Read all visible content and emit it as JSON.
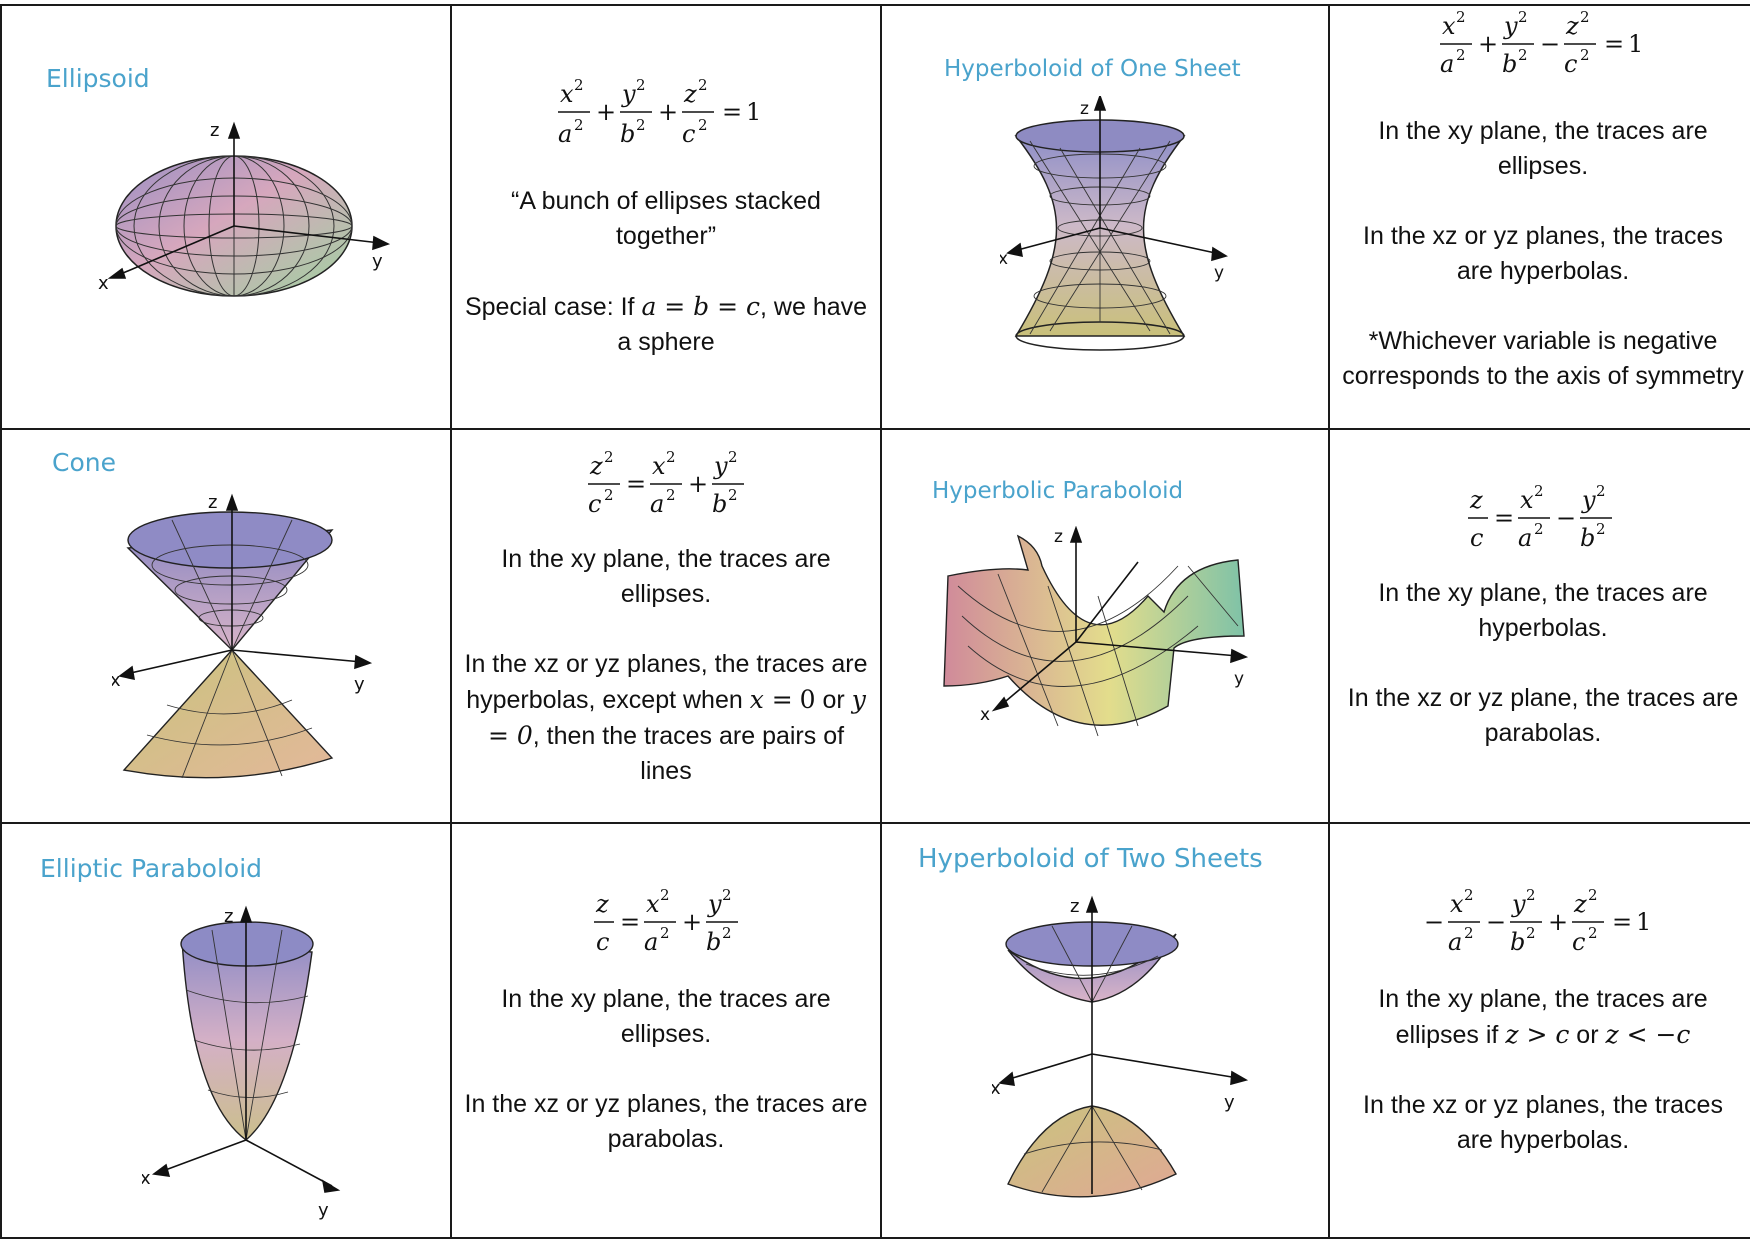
{
  "row1": {
    "ellipsoid": {
      "title": "Ellipsoid",
      "equation": "x^2/a^2 + y^2/b^2 + z^2/c^2 = 1",
      "desc1": "“A bunch of ellipses stacked together”",
      "desc2_pre": "Special case: If ",
      "desc2_math": "a = b = c",
      "desc2_post": ", we have a sphere"
    },
    "hyperboloid_one": {
      "title": "Hyperboloid of One Sheet",
      "equation": "x^2/a^2 + y^2/b^2 − z^2/c^2 = 1",
      "desc1": "In the xy plane, the traces are ellipses.",
      "desc2": "In the xz or yz planes, the traces are hyperbolas.",
      "desc3": "*Whichever variable is negative corresponds to the axis of symmetry"
    }
  },
  "row2": {
    "cone": {
      "title": "Cone",
      "equation": "z^2/c^2 = x^2/a^2 + y^2/b^2",
      "desc1": "In the xy plane, the traces are ellipses.",
      "desc2_a": "In the xz or yz planes, the traces are hyperbolas, except when ",
      "desc2_m1": "x =",
      "desc2_m2": "0",
      "desc2_b": " or ",
      "desc2_m3": "y = 0",
      "desc2_c": ", then the traces are pairs of lines"
    },
    "hyperbolic_paraboloid": {
      "title": "Hyperbolic Paraboloid",
      "equation": "z/c = x^2/a^2 − y^2/b^2",
      "desc1": "In the xy plane, the traces are hyperbolas.",
      "desc2": "In the xz or yz plane, the traces are parabolas."
    }
  },
  "row3": {
    "elliptic_paraboloid": {
      "title": "Elliptic Paraboloid",
      "equation": "z/c = x^2/a^2 + y^2/b^2",
      "desc1": "In the xy plane, the traces are ellipses.",
      "desc2": "In the xz or yz planes, the traces are parabolas."
    },
    "hyperboloid_two": {
      "title": "Hyperboloid of Two Sheets",
      "equation": "−x^2/a^2 − y^2/b^2 + z^2/c^2 = 1",
      "desc1_pre": "In the xy plane, the traces are ellipses if ",
      "desc1_m1": "z > c",
      "desc1_mid": " or ",
      "desc1_m2": "z < −c",
      "desc2": "In the xz or yz planes, the traces are hyperbolas."
    }
  },
  "axis_labels": {
    "x": "x",
    "y": "y",
    "z": "z"
  },
  "colors": {
    "title": "#4aa3cc",
    "border": "#1a1a1a"
  }
}
